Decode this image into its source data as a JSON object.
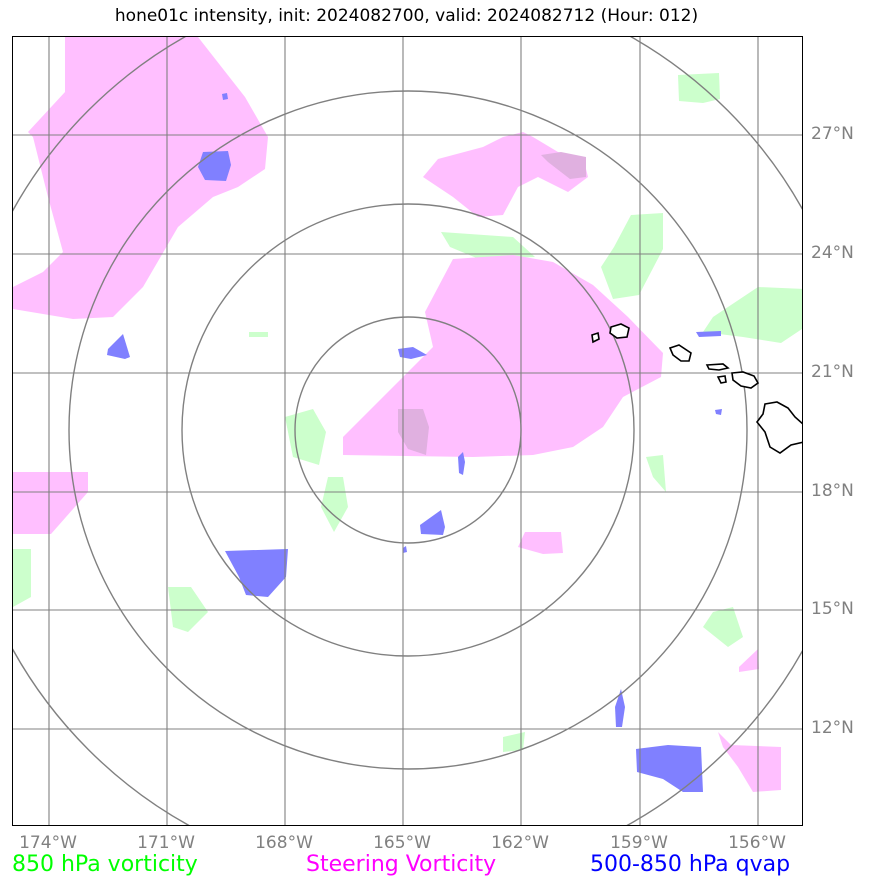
{
  "title": "hone01c intensity, init: 2024082700, valid: 2024082712 (Hour: 012)",
  "lon_ticks": [
    "174°W",
    "171°W",
    "168°W",
    "165°W",
    "162°W",
    "159°W",
    "156°W"
  ],
  "lat_ticks": [
    "27°N",
    "24°N",
    "21°N",
    "18°N",
    "15°N",
    "12°N"
  ],
  "legend": {
    "vort850": {
      "label": "850 hPa vorticity",
      "color": "#00ff00"
    },
    "steering": {
      "label": "Steering Vorticity",
      "color": "#ff00ff"
    },
    "qvap": {
      "label": "500-850 hPa qvap",
      "color": "#0000ff"
    }
  },
  "colors": {
    "vort850_fill": "#ccffcc",
    "steering_fill": "#ffbfff",
    "qvap_fill": "#8080ff",
    "grid": "#808080",
    "range_rings": "#808080",
    "coastline": "#000000"
  },
  "map": {
    "extent_lon": [
      -175,
      -155
    ],
    "extent_lat": [
      9.5,
      29.5
    ],
    "storm_center": {
      "lon": -165,
      "lat": 19.5
    },
    "range_rings_count": 4,
    "features": [
      "Hawaiian Islands coastline"
    ]
  }
}
